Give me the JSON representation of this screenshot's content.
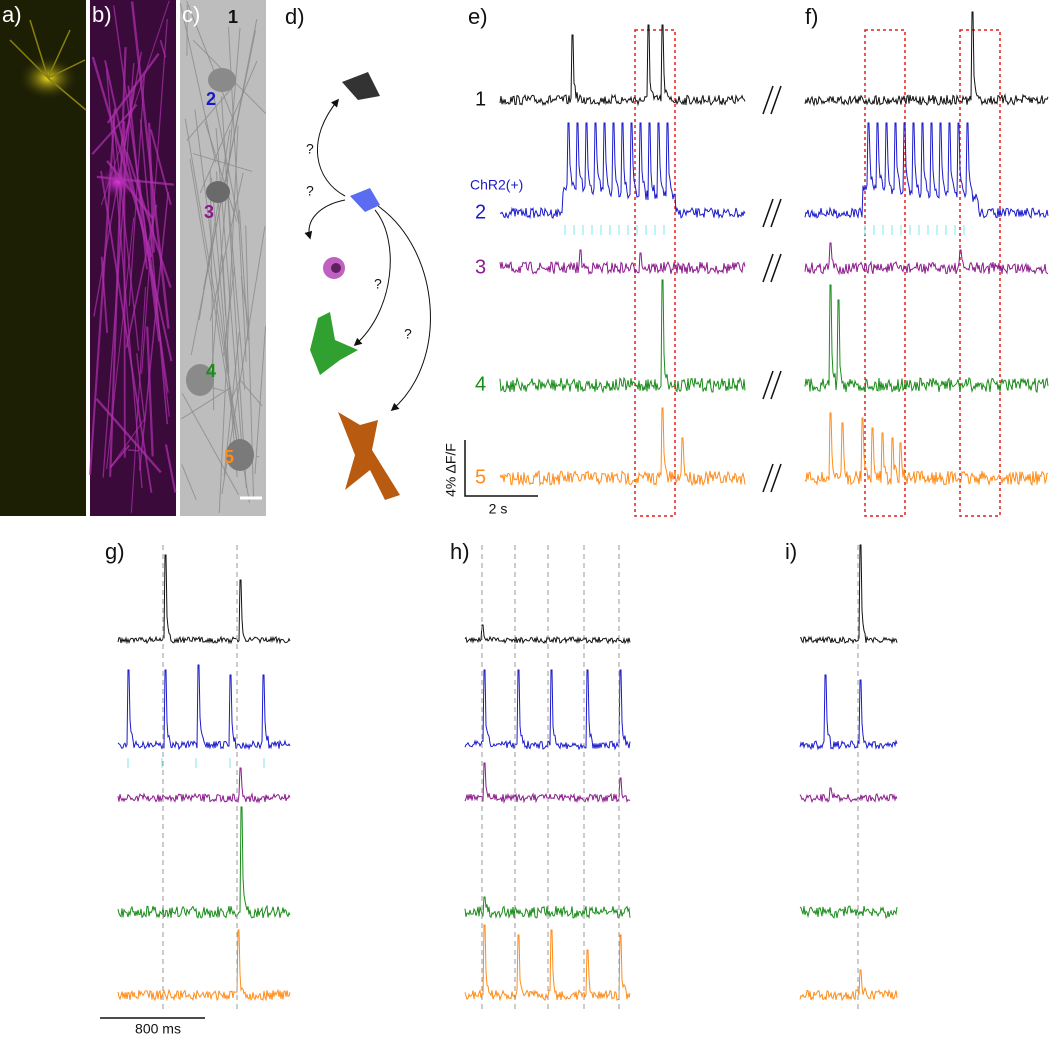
{
  "panels": {
    "a": "a)",
    "b": "b)",
    "c": "c)",
    "d": "d)",
    "e": "e)",
    "f": "f)",
    "g": "g)",
    "h": "h)",
    "i": "i)"
  },
  "image_c_labels": [
    "1",
    "2",
    "3",
    "4",
    "5"
  ],
  "diagram_d": {
    "question_marks": [
      "?",
      "?",
      "?",
      "?"
    ]
  },
  "traces_e": {
    "cell_labels": [
      "1",
      "2",
      "3",
      "4",
      "5"
    ],
    "annotation": "ChR2(+)",
    "scale_y": "4% ΔF/F",
    "scale_x": "2 s"
  },
  "scale_g": "800 ms"
}
